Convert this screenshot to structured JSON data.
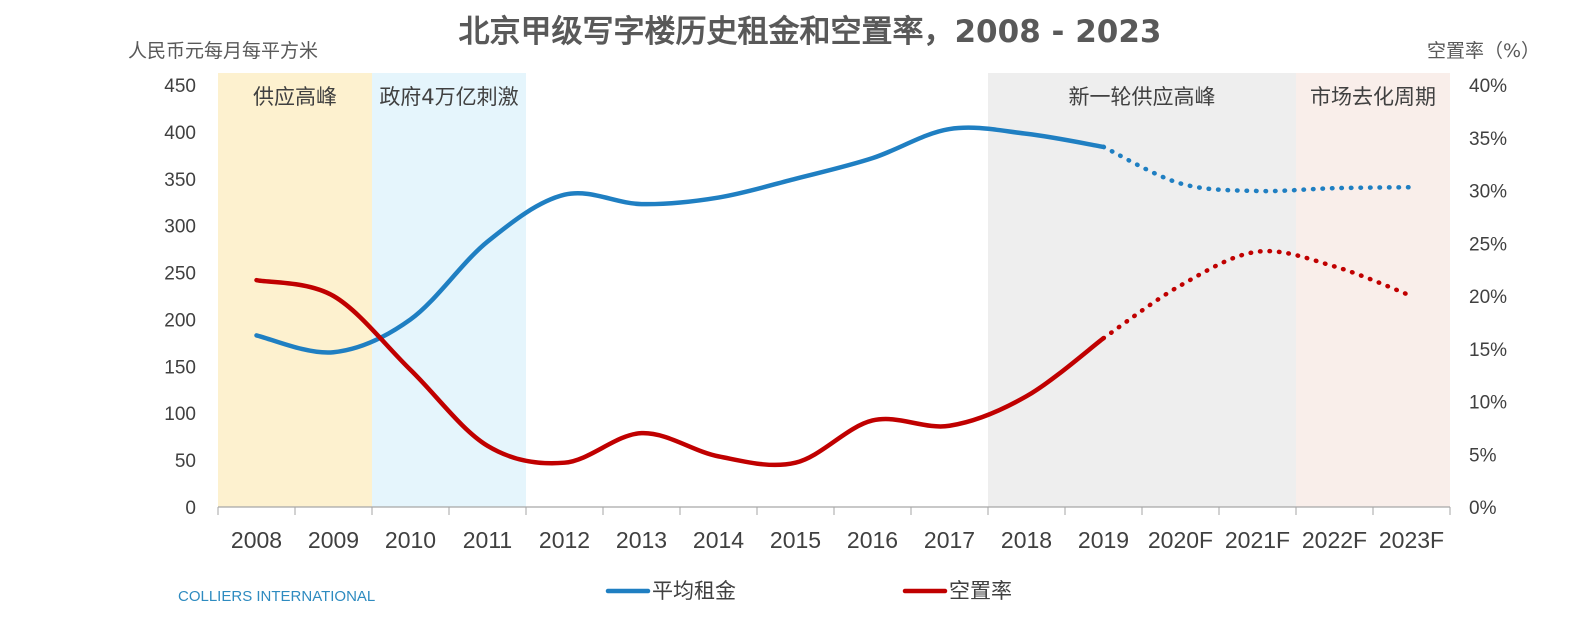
{
  "colors": {
    "rent": "#1f7fc2",
    "vacancy": "#c00000",
    "source": "#2e8bc0",
    "axis": "#a6a6a6"
  },
  "source_label": "COLLIERS INTERNATIONAL",
  "chart_data": {
    "type": "line",
    "title": "北京甲级写字楼历史租金和空置率，2008 - 2023",
    "ylabel": "人民币元每月每平方米",
    "y2label": "空置率（%）",
    "categories": [
      "2008",
      "2009",
      "2010",
      "2011",
      "2012",
      "2013",
      "2014",
      "2015",
      "2016",
      "2017",
      "2018",
      "2019",
      "2020F",
      "2021F",
      "2022F",
      "2023F"
    ],
    "ylim": [
      0,
      450
    ],
    "y_ticks": [
      0,
      50,
      100,
      150,
      200,
      250,
      300,
      350,
      400,
      450
    ],
    "y2lim": [
      0,
      40
    ],
    "y2_ticks": [
      "0%",
      "5%",
      "10%",
      "15%",
      "20%",
      "25%",
      "30%",
      "35%",
      "40%"
    ],
    "grid": false,
    "legend_position": "bottom",
    "forecast_start_index": 11,
    "series": [
      {
        "name": "平均租金",
        "axis": "left",
        "color": "#1f7fc2",
        "values": [
          183,
          165,
          200,
          283,
          333,
          323,
          330,
          350,
          372,
          403,
          398,
          384,
          345,
          337,
          340,
          341
        ]
      },
      {
        "name": "空置率",
        "axis": "right",
        "color": "#c00000",
        "values": [
          21.5,
          20.0,
          13.0,
          5.8,
          4.2,
          7.0,
          4.8,
          4.2,
          8.2,
          7.7,
          10.5,
          16.0,
          21.0,
          24.2,
          22.8,
          20.0
        ]
      }
    ],
    "bands": [
      {
        "label": "供应高峰",
        "from": -0.5,
        "to": 1.5,
        "color": "#fdf1cf"
      },
      {
        "label": "政府4万亿刺激",
        "from": 1.5,
        "to": 3.5,
        "color": "#e5f5fc"
      },
      {
        "label": "新一轮供应高峰",
        "from": 9.5,
        "to": 13.5,
        "color": "#eeeeee"
      },
      {
        "label": "市场去化周期",
        "from": 13.5,
        "to": 15.5,
        "color": "#f9eeea"
      }
    ]
  }
}
